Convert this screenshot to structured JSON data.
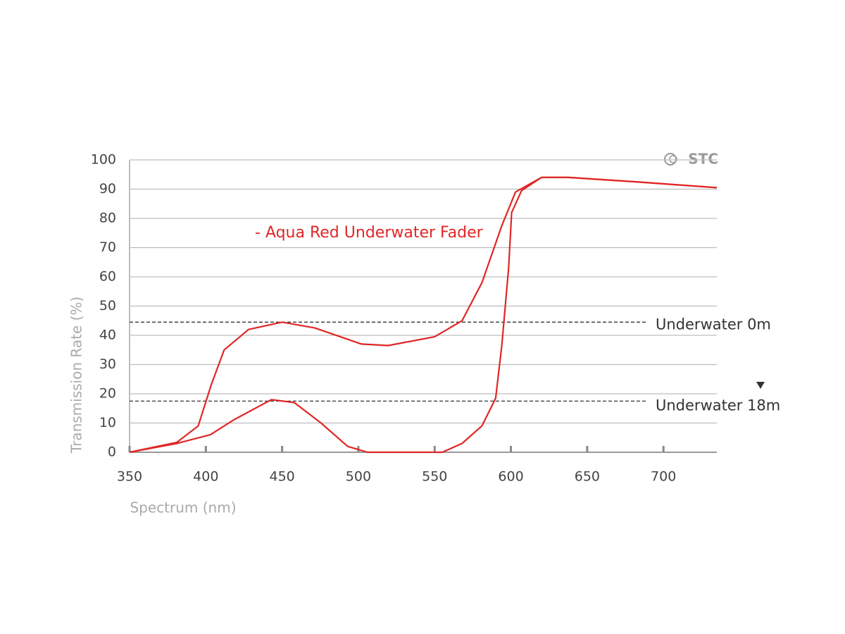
{
  "chart_data": {
    "type": "line",
    "x_label": "Spectrum (nm)",
    "y_label": "Transmission Rate (%)",
    "annotation": "- Aqua Red Underwater Fader",
    "logo": "STC",
    "xlim": [
      350,
      735
    ],
    "xticks": [
      350,
      400,
      450,
      500,
      550,
      600,
      650,
      700
    ],
    "ylim": [
      0,
      100
    ],
    "yticks": [
      0,
      10,
      20,
      30,
      40,
      50,
      60,
      70,
      80,
      90,
      100
    ],
    "grid": true,
    "series": [
      {
        "color": "#e02626",
        "x": [
          350,
          381,
          395,
          403.5,
          412,
          428,
          450,
          471.5,
          502,
          519.5,
          550,
          568,
          581,
          594,
          603,
          620,
          638,
          682,
          735
        ],
        "values": [
          0,
          3.4,
          9,
          23,
          35,
          42,
          44.5,
          42.5,
          37,
          36.5,
          39.5,
          45,
          58,
          77.5,
          89,
          94,
          94,
          92.5,
          90.5
        ]
      },
      {
        "color": "#e02626",
        "x": [
          350,
          381,
          403,
          418,
          443,
          458,
          475.5,
          493,
          506,
          532,
          555,
          568,
          581,
          590,
          594,
          598.5,
          600.5,
          607,
          620,
          638,
          682,
          735
        ],
        "values": [
          0,
          3,
          6,
          11,
          18,
          17,
          10,
          2,
          0,
          0,
          0,
          3,
          9,
          18.5,
          36.5,
          63,
          82,
          89.5,
          94,
          94,
          92.5,
          90.5
        ]
      }
    ],
    "reference_lines": [
      {
        "label": "Underwater 0m",
        "value": 44.5
      },
      {
        "label": "Underwater 18m",
        "value": 17.5
      }
    ]
  }
}
